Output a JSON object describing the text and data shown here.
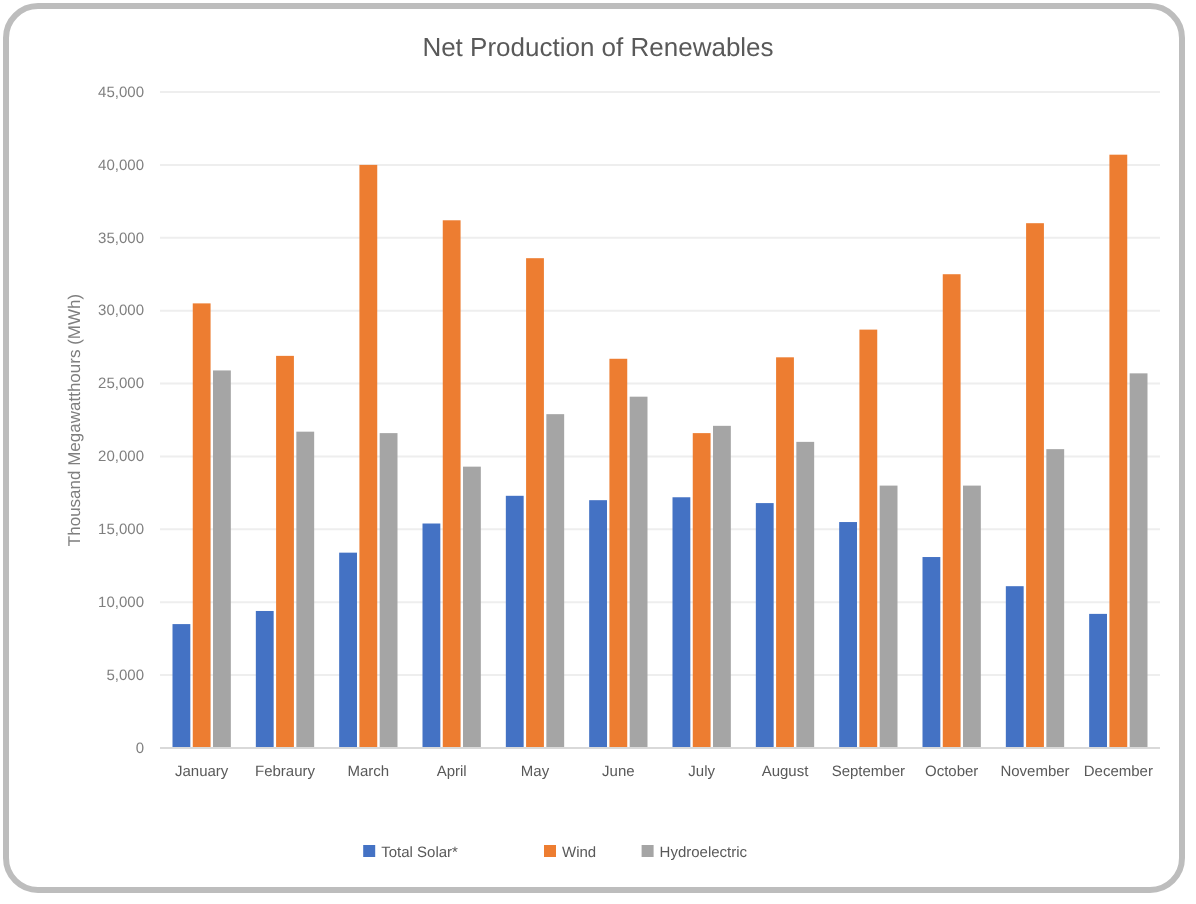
{
  "chart_data": {
    "type": "bar",
    "title": "Net Production of Renewables",
    "ylabel": "Thousand Megawatthours (MWh)",
    "categories": [
      "January",
      "Febraury",
      "March",
      "April",
      "May",
      "June",
      "July",
      "August",
      "September",
      "October",
      "November",
      "December"
    ],
    "series": [
      {
        "name": "Total Solar*",
        "color": "#4472c4",
        "values": [
          8500,
          9400,
          13400,
          15400,
          17300,
          17000,
          17200,
          16800,
          15500,
          13100,
          11100,
          9200
        ]
      },
      {
        "name": "Wind",
        "color": "#ed7d31",
        "values": [
          30500,
          26900,
          40000,
          36200,
          33600,
          26700,
          21600,
          26800,
          28700,
          32500,
          36000,
          40700
        ]
      },
      {
        "name": "Hydroelectric",
        "color": "#a5a5a5",
        "values": [
          25900,
          21700,
          21600,
          19300,
          22900,
          24100,
          22100,
          21000,
          18000,
          18000,
          20500,
          25700
        ]
      }
    ],
    "ylim": [
      0,
      45000
    ],
    "yticks": [
      {
        "value": 0,
        "label": "0"
      },
      {
        "value": 5000,
        "label": "5,000"
      },
      {
        "value": 10000,
        "label": "10,000"
      },
      {
        "value": 15000,
        "label": "15,000"
      },
      {
        "value": 20000,
        "label": "20,000"
      },
      {
        "value": 25000,
        "label": "25,000"
      },
      {
        "value": 30000,
        "label": "30,000"
      },
      {
        "value": 35000,
        "label": "35,000"
      },
      {
        "value": 40000,
        "label": "40,000"
      },
      {
        "value": 45000,
        "label": "45,000"
      }
    ],
    "grid": "y",
    "legend": "bottom"
  }
}
